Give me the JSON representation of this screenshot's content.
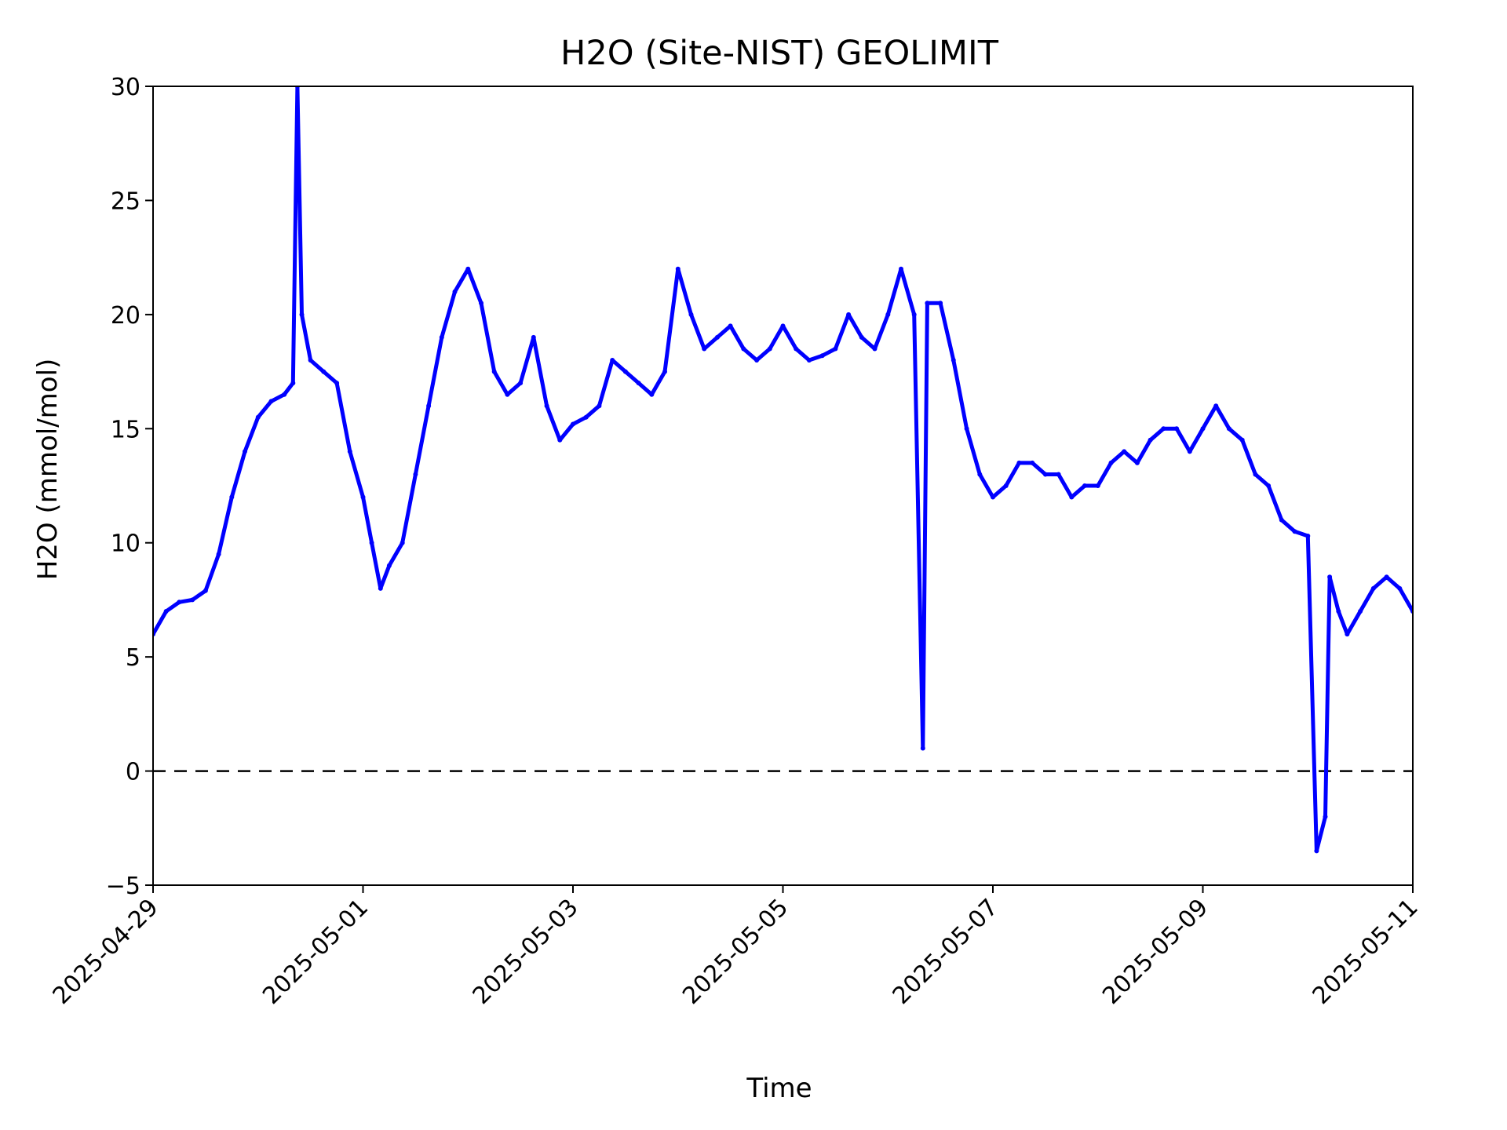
{
  "chart_data": {
    "type": "scatter",
    "title": "H2O (Site-NIST) GEOLIMIT",
    "xlabel": "Time",
    "ylabel": "H2O (mmol/mol)",
    "xlim": [
      "2025-04-29",
      "2025-05-11"
    ],
    "ylim": [
      -5,
      30
    ],
    "x_ticks": [
      "2025-04-29",
      "2025-05-01",
      "2025-05-03",
      "2025-05-05",
      "2025-05-07",
      "2025-05-09",
      "2025-05-11"
    ],
    "y_ticks": [
      -5,
      0,
      5,
      10,
      15,
      20,
      25,
      30
    ],
    "reference_line": {
      "y": 0,
      "style": "dashed",
      "color": "#000000"
    },
    "grid": false,
    "series_color": "#0000ff",
    "series": [
      {
        "points": [
          [
            "2025-04-29 00:00",
            6.0
          ],
          [
            "2025-04-29 03:00",
            7.0
          ],
          [
            "2025-04-29 06:00",
            7.4
          ],
          [
            "2025-04-29 09:00",
            7.5
          ],
          [
            "2025-04-29 12:00",
            7.9
          ],
          [
            "2025-04-29 15:00",
            9.5
          ],
          [
            "2025-04-29 18:00",
            12.0
          ],
          [
            "2025-04-29 21:00",
            14.0
          ],
          [
            "2025-04-30 00:00",
            15.5
          ],
          [
            "2025-04-30 03:00",
            16.2
          ],
          [
            "2025-04-30 06:00",
            16.5
          ],
          [
            "2025-04-30 08:00",
            17.0
          ],
          [
            "2025-04-30 09:00",
            30.0
          ],
          [
            "2025-04-30 10:00",
            20.0
          ],
          [
            "2025-04-30 12:00",
            18.0
          ],
          [
            "2025-04-30 15:00",
            17.5
          ],
          [
            "2025-04-30 18:00",
            17.0
          ],
          [
            "2025-04-30 21:00",
            14.0
          ],
          [
            "2025-05-01 00:00",
            12.0
          ],
          [
            "2025-05-01 02:00",
            10.0
          ],
          [
            "2025-05-01 04:00",
            8.0
          ],
          [
            "2025-05-01 06:00",
            9.0
          ],
          [
            "2025-05-01 09:00",
            10.0
          ],
          [
            "2025-05-01 12:00",
            13.0
          ],
          [
            "2025-05-01 15:00",
            16.0
          ],
          [
            "2025-05-01 18:00",
            19.0
          ],
          [
            "2025-05-01 21:00",
            21.0
          ],
          [
            "2025-05-02 00:00",
            22.0
          ],
          [
            "2025-05-02 03:00",
            20.5
          ],
          [
            "2025-05-02 06:00",
            17.5
          ],
          [
            "2025-05-02 09:00",
            16.5
          ],
          [
            "2025-05-02 12:00",
            17.0
          ],
          [
            "2025-05-02 15:00",
            19.0
          ],
          [
            "2025-05-02 18:00",
            16.0
          ],
          [
            "2025-05-02 21:00",
            14.5
          ],
          [
            "2025-05-03 00:00",
            15.2
          ],
          [
            "2025-05-03 03:00",
            15.5
          ],
          [
            "2025-05-03 06:00",
            16.0
          ],
          [
            "2025-05-03 09:00",
            18.0
          ],
          [
            "2025-05-03 12:00",
            17.5
          ],
          [
            "2025-05-03 15:00",
            17.0
          ],
          [
            "2025-05-03 18:00",
            16.5
          ],
          [
            "2025-05-03 21:00",
            17.5
          ],
          [
            "2025-05-04 00:00",
            22.0
          ],
          [
            "2025-05-04 03:00",
            20.0
          ],
          [
            "2025-05-04 06:00",
            18.5
          ],
          [
            "2025-05-04 09:00",
            19.0
          ],
          [
            "2025-05-04 12:00",
            19.5
          ],
          [
            "2025-05-04 15:00",
            18.5
          ],
          [
            "2025-05-04 18:00",
            18.0
          ],
          [
            "2025-05-04 21:00",
            18.5
          ],
          [
            "2025-05-05 00:00",
            19.5
          ],
          [
            "2025-05-05 03:00",
            18.5
          ],
          [
            "2025-05-05 06:00",
            18.0
          ],
          [
            "2025-05-05 09:00",
            18.2
          ],
          [
            "2025-05-05 12:00",
            18.5
          ],
          [
            "2025-05-05 15:00",
            20.0
          ],
          [
            "2025-05-05 18:00",
            19.0
          ],
          [
            "2025-05-05 21:00",
            18.5
          ],
          [
            "2025-05-06 00:00",
            20.0
          ],
          [
            "2025-05-06 03:00",
            22.0
          ],
          [
            "2025-05-06 06:00",
            20.0
          ],
          [
            "2025-05-06 08:00",
            1.0
          ],
          [
            "2025-05-06 09:00",
            20.5
          ],
          [
            "2025-05-06 12:00",
            20.5
          ],
          [
            "2025-05-06 15:00",
            18.0
          ],
          [
            "2025-05-06 18:00",
            15.0
          ],
          [
            "2025-05-06 21:00",
            13.0
          ],
          [
            "2025-05-07 00:00",
            12.0
          ],
          [
            "2025-05-07 03:00",
            12.5
          ],
          [
            "2025-05-07 06:00",
            13.5
          ],
          [
            "2025-05-07 09:00",
            13.5
          ],
          [
            "2025-05-07 12:00",
            13.0
          ],
          [
            "2025-05-07 15:00",
            13.0
          ],
          [
            "2025-05-07 18:00",
            12.0
          ],
          [
            "2025-05-07 21:00",
            12.5
          ],
          [
            "2025-05-08 00:00",
            12.5
          ],
          [
            "2025-05-08 03:00",
            13.5
          ],
          [
            "2025-05-08 06:00",
            14.0
          ],
          [
            "2025-05-08 09:00",
            13.5
          ],
          [
            "2025-05-08 12:00",
            14.5
          ],
          [
            "2025-05-08 15:00",
            15.0
          ],
          [
            "2025-05-08 18:00",
            15.0
          ],
          [
            "2025-05-08 21:00",
            14.0
          ],
          [
            "2025-05-09 00:00",
            15.0
          ],
          [
            "2025-05-09 03:00",
            16.0
          ],
          [
            "2025-05-09 06:00",
            15.0
          ],
          [
            "2025-05-09 09:00",
            14.5
          ],
          [
            "2025-05-09 12:00",
            13.0
          ],
          [
            "2025-05-09 15:00",
            12.5
          ],
          [
            "2025-05-09 18:00",
            11.0
          ],
          [
            "2025-05-09 21:00",
            10.5
          ],
          [
            "2025-05-10 00:00",
            10.3
          ],
          [
            "2025-05-10 02:00",
            -3.5
          ],
          [
            "2025-05-10 04:00",
            -2.0
          ],
          [
            "2025-05-10 05:00",
            8.5
          ],
          [
            "2025-05-10 07:00",
            7.0
          ],
          [
            "2025-05-10 09:00",
            6.0
          ],
          [
            "2025-05-10 12:00",
            7.0
          ],
          [
            "2025-05-10 15:00",
            8.0
          ],
          [
            "2025-05-10 18:00",
            8.5
          ],
          [
            "2025-05-10 21:00",
            8.0
          ],
          [
            "2025-05-11 00:00",
            7.0
          ]
        ]
      }
    ]
  }
}
